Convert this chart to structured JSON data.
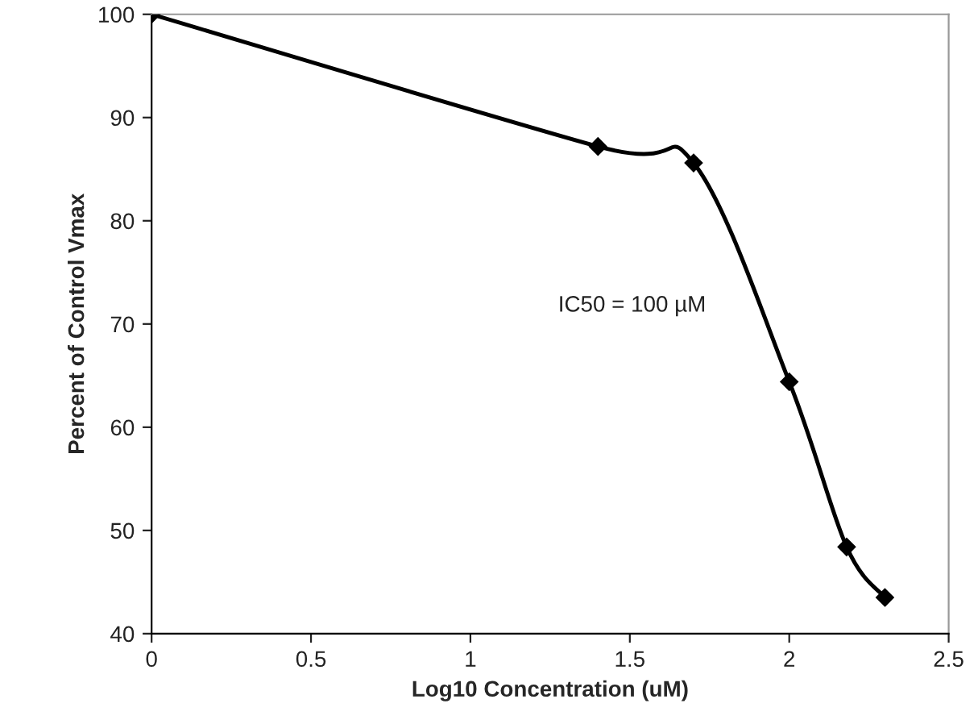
{
  "chart_data": {
    "type": "line",
    "xlabel": "Log10 Concentration (uM)",
    "ylabel": "Percent of Control Vmax",
    "x": [
      0,
      1.4,
      1.7,
      2.0,
      2.18,
      2.3
    ],
    "series": [
      {
        "color": "#000000",
        "values": [
          100,
          87.2,
          85.6,
          64.4,
          48.4,
          43.5
        ]
      }
    ],
    "xlim": [
      0,
      2.5
    ],
    "xticks": [
      0,
      0.5,
      1,
      1.5,
      2,
      2.5
    ],
    "ylim": [
      40,
      100
    ],
    "yticks": [
      40,
      50,
      60,
      70,
      80,
      90,
      100
    ],
    "grid": false,
    "legend": false,
    "marker": "diamond",
    "line_style": "solid",
    "annotations": [
      "IC50 = 100 µM"
    ]
  }
}
